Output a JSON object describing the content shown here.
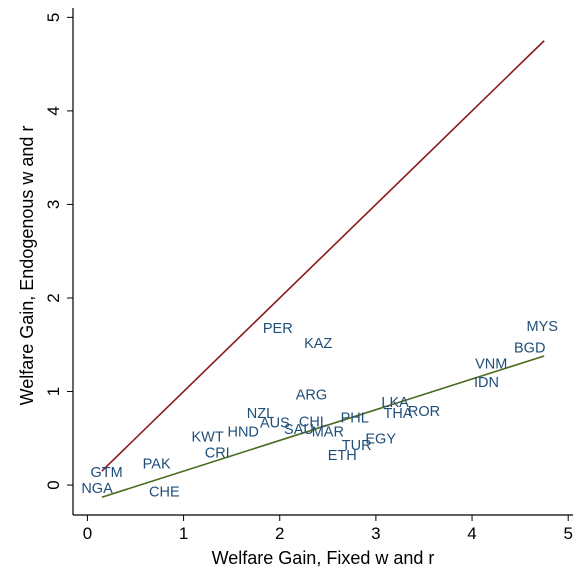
{
  "chart_data": {
    "type": "scatter",
    "xlabel": "Welfare Gain, Fixed w and r",
    "ylabel": "Welfare Gain, Endogenous w and r",
    "xlim": [
      -0.15,
      5.05
    ],
    "ylim": [
      -0.32,
      5.1
    ],
    "xticks": [
      0,
      1,
      2,
      3,
      4,
      5
    ],
    "yticks": [
      0,
      1,
      2,
      3,
      4,
      5
    ],
    "grid": false,
    "marker_label_color": "#1f4e79",
    "points": [
      {
        "label": "MYS",
        "x": 4.73,
        "y": 1.7
      },
      {
        "label": "BGD",
        "x": 4.6,
        "y": 1.47
      },
      {
        "label": "VNM",
        "x": 4.2,
        "y": 1.3
      },
      {
        "label": "IDN",
        "x": 4.15,
        "y": 1.1
      },
      {
        "label": "PER",
        "x": 1.98,
        "y": 1.68
      },
      {
        "label": "KAZ",
        "x": 2.4,
        "y": 1.52
      },
      {
        "label": "ARG",
        "x": 2.33,
        "y": 0.97
      },
      {
        "label": "LKA",
        "x": 3.2,
        "y": 0.89
      },
      {
        "label": "THA",
        "x": 3.23,
        "y": 0.77
      },
      {
        "label": "ROR",
        "x": 3.5,
        "y": 0.79
      },
      {
        "label": "PHL",
        "x": 2.78,
        "y": 0.72
      },
      {
        "label": "NZL",
        "x": 1.8,
        "y": 0.77
      },
      {
        "label": "AUS",
        "x": 1.95,
        "y": 0.67
      },
      {
        "label": "CHL",
        "x": 2.35,
        "y": 0.68
      },
      {
        "label": "SAU",
        "x": 2.2,
        "y": 0.6
      },
      {
        "label": "MAR",
        "x": 2.5,
        "y": 0.57
      },
      {
        "label": "EGY",
        "x": 3.05,
        "y": 0.5
      },
      {
        "label": "TUR",
        "x": 2.8,
        "y": 0.43
      },
      {
        "label": "ETH",
        "x": 2.65,
        "y": 0.32
      },
      {
        "label": "KWT",
        "x": 1.25,
        "y": 0.52
      },
      {
        "label": "HND",
        "x": 1.62,
        "y": 0.57
      },
      {
        "label": "CRI",
        "x": 1.35,
        "y": 0.35
      },
      {
        "label": "PAK",
        "x": 0.72,
        "y": 0.23
      },
      {
        "label": "GTM",
        "x": 0.2,
        "y": 0.14
      },
      {
        "label": "NGA",
        "x": 0.1,
        "y": -0.03
      },
      {
        "label": "CHE",
        "x": 0.8,
        "y": -0.07
      }
    ],
    "lines": [
      {
        "x": [
          0.15,
          4.75
        ],
        "y": [
          0.15,
          4.75
        ],
        "color": "#8b1a1a"
      },
      {
        "x": [
          0.15,
          4.75
        ],
        "y": [
          -0.13,
          1.38
        ],
        "color": "#4a6b1e"
      }
    ]
  }
}
